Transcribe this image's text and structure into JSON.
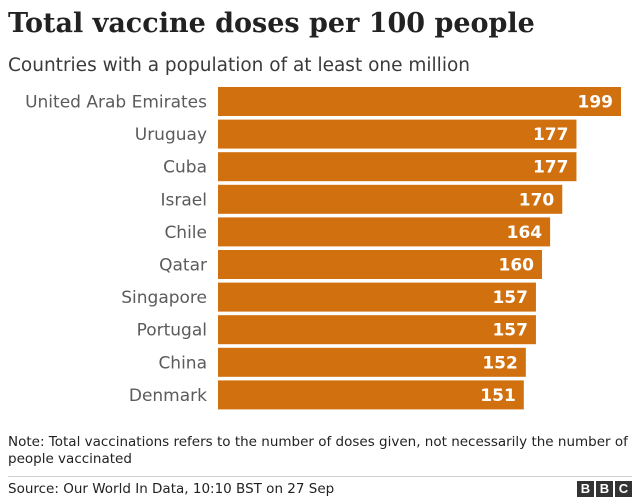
{
  "header": {
    "title": "Total vaccine doses per 100 people",
    "subtitle": "Countries with a population of at least one million"
  },
  "chart_data": {
    "type": "bar",
    "orientation": "horizontal",
    "categories": [
      "United Arab Emirates",
      "Uruguay",
      "Cuba",
      "Israel",
      "Chile",
      "Qatar",
      "Singapore",
      "Portugal",
      "China",
      "Denmark"
    ],
    "values": [
      199,
      177,
      177,
      170,
      164,
      160,
      157,
      157,
      152,
      151
    ],
    "title": "Total vaccine doses per 100 people",
    "subtitle": "Countries with a population of at least one million",
    "xlabel": "",
    "ylabel": "",
    "xlim": [
      0,
      199
    ],
    "grid": false,
    "bar_color": "#d1700e",
    "data_labels": true
  },
  "footer": {
    "note": "Note: Total vaccinations refers to the number of doses given, not necessarily the number of people vaccinated",
    "source": "Source: Our World In Data, 10:10 BST on 27 Sep",
    "logo_text": "BBC",
    "logo_letters": [
      "B",
      "B",
      "C"
    ]
  }
}
